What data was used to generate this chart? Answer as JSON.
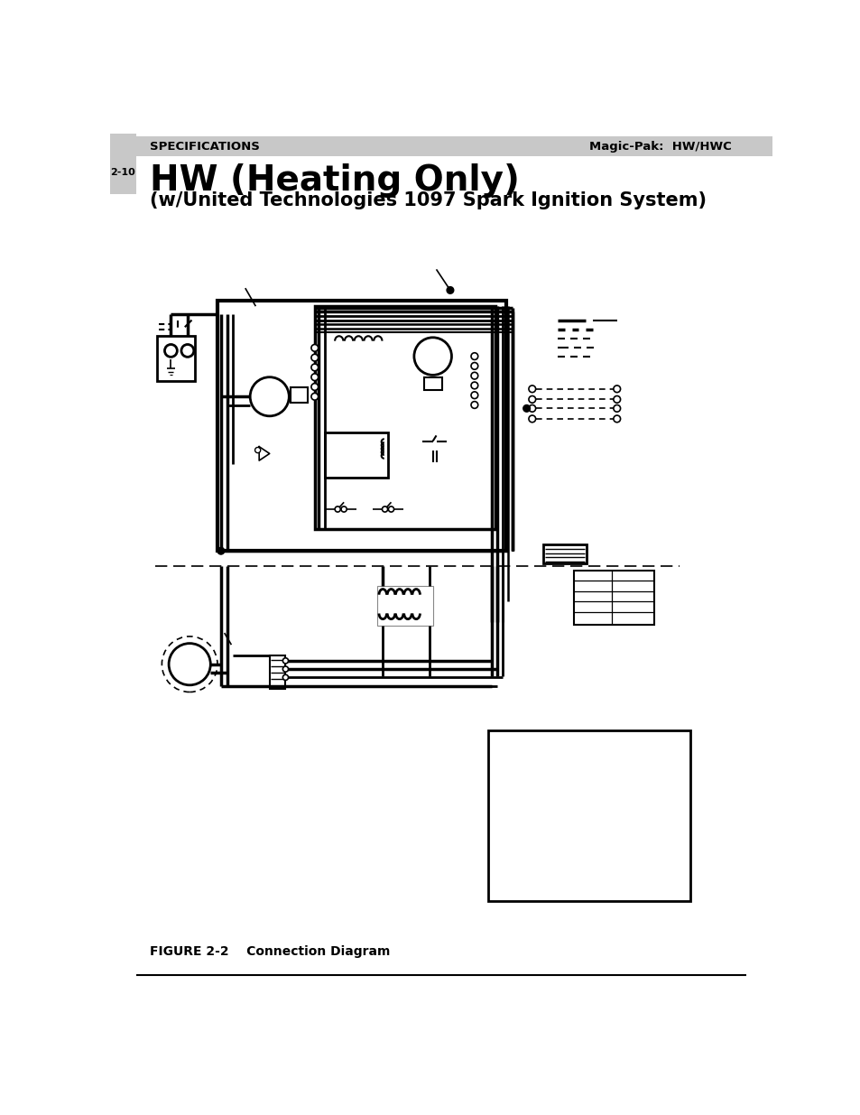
{
  "page_bg": "#ffffff",
  "header_bg": "#c8c8c8",
  "header_left": "SPECIFICATIONS",
  "header_right": "Magic-Pak:  HW/HWC",
  "page_num": "2-10",
  "title_line1": "HW (Heating Only)",
  "title_line2": "(w/United Technologies 1097 Spark Ignition System)",
  "figure_label": "FIGURE 2-2    Connection Diagram"
}
